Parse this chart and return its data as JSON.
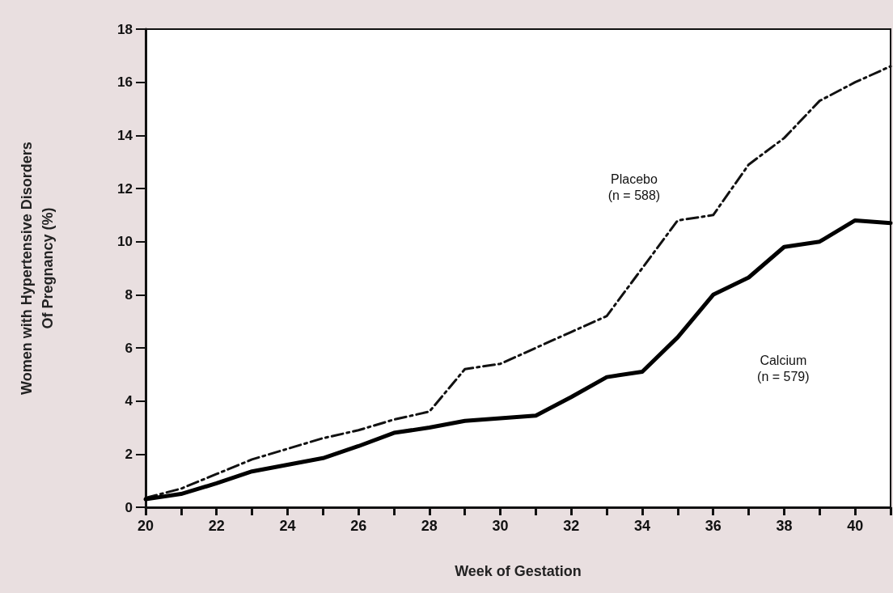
{
  "chart_data": {
    "type": "line",
    "xlabel": "Week of Gestation",
    "ylabel": "Women with Hypertensive Disorders\nOf Pregnancy (%)",
    "x": [
      20,
      21,
      22,
      23,
      24,
      25,
      26,
      27,
      28,
      29,
      30,
      31,
      32,
      33,
      34,
      35,
      36,
      37,
      38,
      39,
      40,
      41
    ],
    "series": [
      {
        "color": "#111111",
        "line_style": "dashdot",
        "values": [
          0.35,
          0.7,
          1.25,
          1.8,
          2.2,
          2.6,
          2.9,
          3.3,
          3.6,
          5.2,
          5.4,
          6.0,
          6.6,
          7.2,
          9.0,
          10.8,
          11.0,
          12.9,
          13.9,
          15.3,
          16.0,
          16.6
        ]
      },
      {
        "color": "#000000",
        "line_style": "solid",
        "values": [
          0.3,
          0.5,
          0.9,
          1.35,
          1.6,
          1.85,
          2.3,
          2.8,
          3.0,
          3.25,
          3.35,
          3.45,
          4.15,
          4.9,
          5.1,
          6.4,
          8.0,
          8.65,
          9.8,
          10.0,
          10.8,
          10.7
        ]
      }
    ],
    "annotations": [
      "Placebo\n(n = 588)",
      "Calcium\n(n = 579)"
    ],
    "xlim": [
      20,
      41
    ],
    "xticks": [
      20,
      {
        "value": 21,
        "label": null
      },
      22,
      {
        "value": 23,
        "label": null
      },
      24,
      {
        "value": 25,
        "label": null
      },
      26,
      {
        "value": 27,
        "label": null
      },
      28,
      {
        "value": 29,
        "label": null
      },
      30,
      {
        "value": 31,
        "label": null
      },
      32,
      {
        "value": 33,
        "label": null
      },
      34,
      {
        "value": 35,
        "label": null
      },
      36,
      {
        "value": 37,
        "label": null
      },
      38,
      {
        "value": 39,
        "label": null
      },
      40,
      {
        "value": 41,
        "label": null
      }
    ],
    "ylim": [
      0,
      18
    ],
    "yticks": [
      0,
      2,
      4,
      6,
      8,
      10,
      12,
      14,
      16,
      18
    ],
    "grid": false,
    "marker": "none"
  }
}
